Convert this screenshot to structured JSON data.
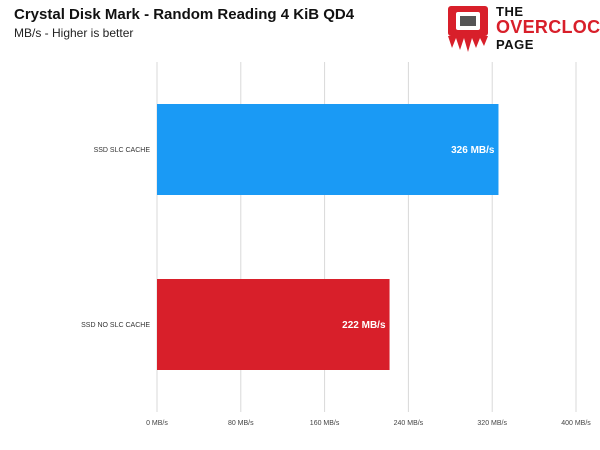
{
  "header": {
    "title": "Crystal Disk Mark - Random Reading 4 KiB QD4",
    "subtitle": "MB/s - Higher is better"
  },
  "logo": {
    "line1": "THE",
    "line2": "OVERCLOCK",
    "line3": "PAGE",
    "icon": "cpu-chip-logo-icon",
    "brand_color": "#d81f2a"
  },
  "chart_data": {
    "type": "bar",
    "orientation": "horizontal",
    "title": "Crystal Disk Mark - Random Reading 4 KiB QD4",
    "subtitle": "MB/s - Higher is better",
    "categories": [
      "SSD SLC CACHE",
      "SSD NO SLC CACHE"
    ],
    "values": [
      326,
      222
    ],
    "data_labels": [
      "326 MB/s",
      "222 MB/s"
    ],
    "colors": [
      "#1a9af5",
      "#d81f2a"
    ],
    "xlim": [
      0,
      400
    ],
    "xticks": [
      0,
      80,
      160,
      240,
      320,
      400
    ],
    "xtick_labels": [
      "0 MB/s",
      "80 MB/s",
      "160 MB/s",
      "240 MB/s",
      "320 MB/s",
      "400 MB/s"
    ],
    "grid": true,
    "legend": "none"
  }
}
